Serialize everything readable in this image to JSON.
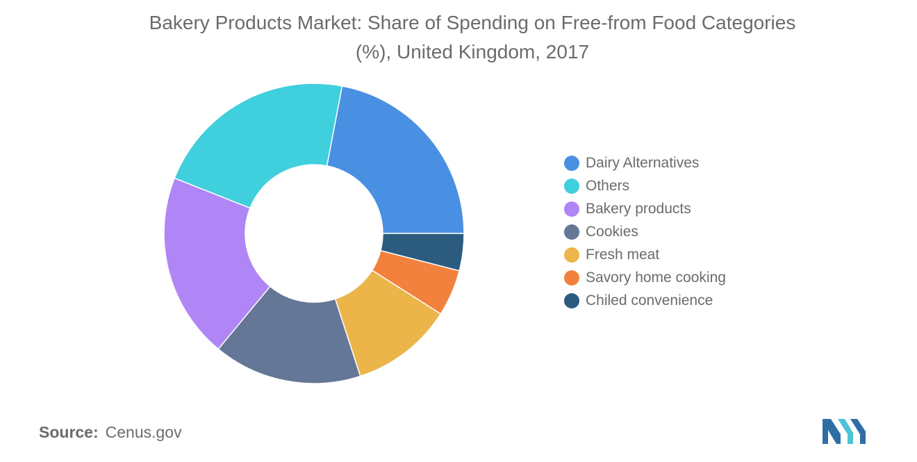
{
  "title_line1": "Bakery Products Market: Share of Spending on Free-from Food Categories",
  "title_line2": "(%), United Kingdom, 2017",
  "chart_data": {
    "type": "pie",
    "style": "donut",
    "title": "Bakery Products Market: Share of Spending on Free-from Food Categories (%), United Kingdom, 2017",
    "legend_position": "right",
    "categories": [
      "Dairy Alternatives",
      "Others",
      "Bakery products",
      "Cookies",
      "Fresh meat",
      "Savory home cooking",
      "Chiled convenience"
    ],
    "values": [
      22,
      22,
      20,
      16,
      11,
      5,
      4
    ],
    "colors": [
      "#4a90e2",
      "#40cfdc",
      "#b085f5",
      "#657797",
      "#ebb54a",
      "#f2813e",
      "#2b5c80"
    ]
  },
  "source": {
    "label": "Source:",
    "value": "Cenus.gov"
  },
  "logo_icon": "mordor-intelligence-logo"
}
